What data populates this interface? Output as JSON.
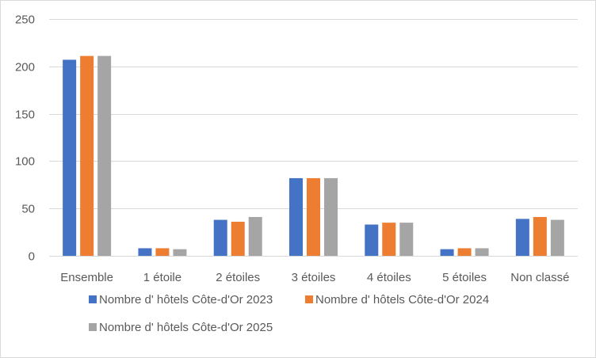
{
  "chart_data": {
    "type": "bar",
    "title": "",
    "xlabel": "",
    "ylabel": "",
    "ylim": [
      0,
      250
    ],
    "yticks": [
      0,
      50,
      100,
      150,
      200,
      250
    ],
    "grid": true,
    "legend_position": "bottom",
    "categories": [
      "Ensemble",
      "1 étoile",
      "2 étoiles",
      "3 étoiles",
      "4 étoiles",
      "5 étoiles",
      "Non classé"
    ],
    "series": [
      {
        "name": "Nombre d' hôtels Côte-d'Or 2023",
        "color": "#4472c4",
        "values": [
          207,
          8,
          38,
          82,
          33,
          7,
          39
        ]
      },
      {
        "name": "Nombre d' hôtels Côte-d'Or 2024",
        "color": "#ed7d31",
        "values": [
          211,
          8,
          36,
          82,
          35,
          8,
          41
        ]
      },
      {
        "name": "Nombre d' hôtels Côte-d'Or 2025",
        "color": "#a5a5a5",
        "values": [
          211,
          7,
          41,
          82,
          35,
          8,
          38
        ]
      }
    ]
  }
}
